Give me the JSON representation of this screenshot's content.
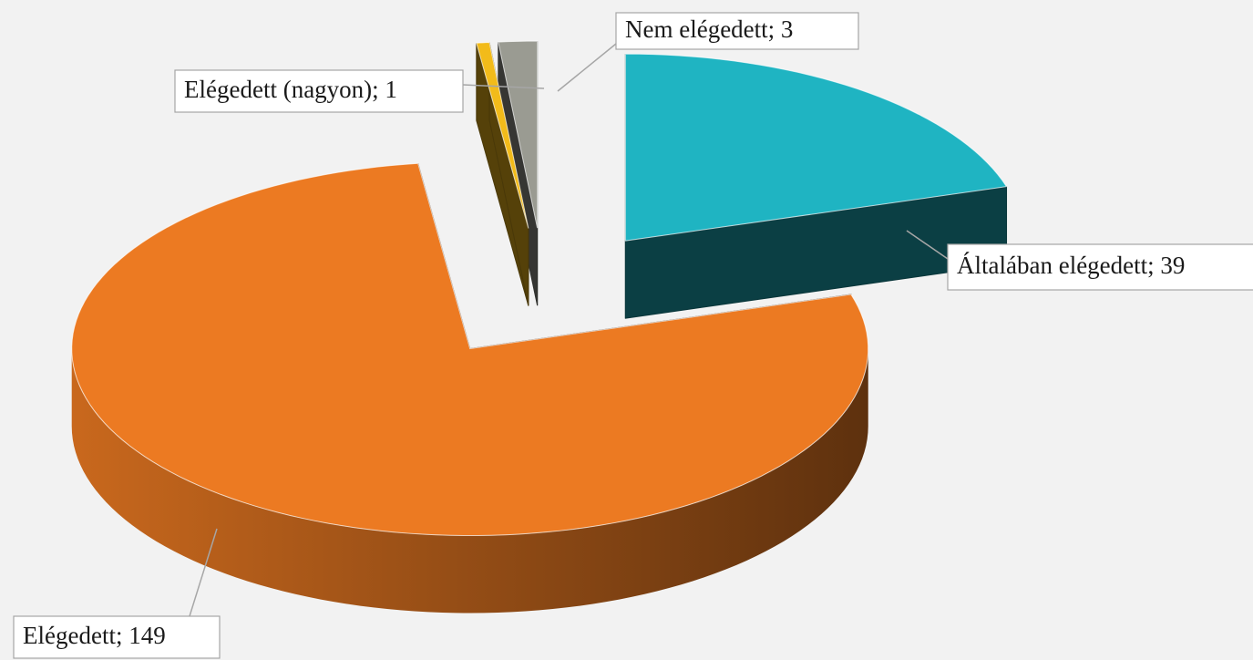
{
  "chart_data": {
    "type": "pie",
    "values": [
      39,
      149,
      1,
      3
    ],
    "value_labels": [
      "Általában elégedett; 39",
      "Elégedett; 149",
      "Elégedett (nagyon); 1",
      "Nem elégedett; 3"
    ],
    "colors": [
      "#1fb4c2",
      "#ec7a22",
      "#f2bb1a",
      "#9a9b92"
    ]
  }
}
